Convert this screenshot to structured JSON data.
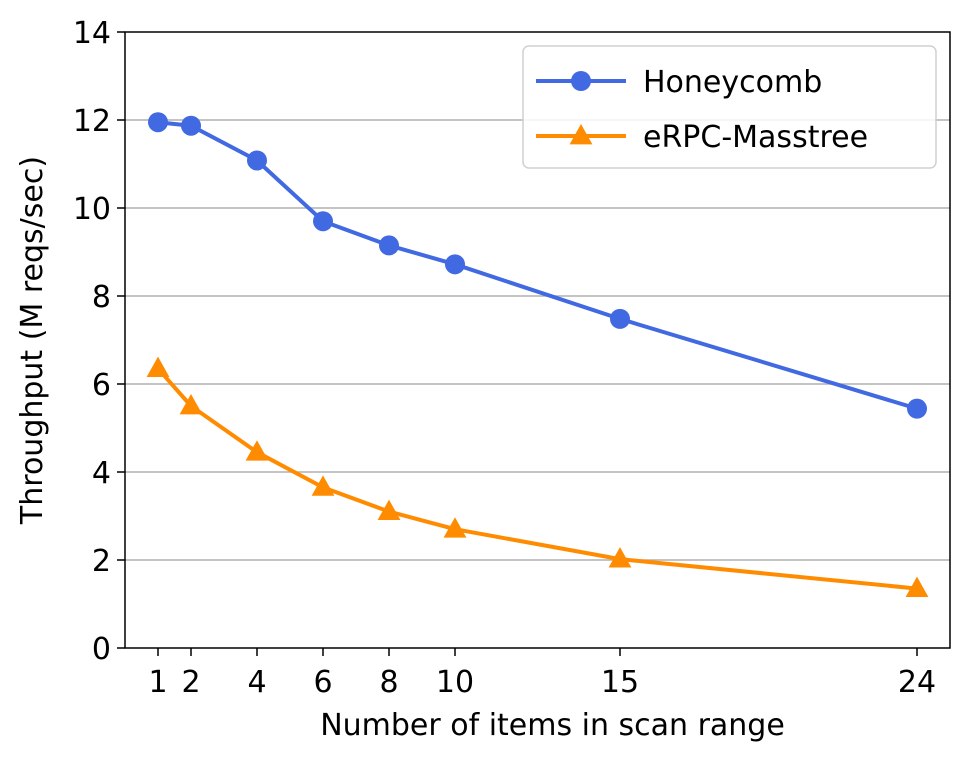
{
  "chart_data": {
    "type": "line",
    "xlabel": "Number of items in scan range",
    "ylabel": "Throughput (M reqs/sec)",
    "x": [
      1,
      2,
      4,
      6,
      8,
      10,
      15,
      24
    ],
    "xticks": [
      "1",
      "2",
      "4",
      "6",
      "8",
      "10",
      "15",
      "24"
    ],
    "yticks": [
      "0",
      "2",
      "4",
      "6",
      "8",
      "10",
      "12",
      "14"
    ],
    "ylim": [
      0,
      14
    ],
    "xlim": [
      0,
      25
    ],
    "grid": "horizontal",
    "legend_position": "top-right",
    "series": [
      {
        "name": "Honeycomb",
        "color": "#4169e1",
        "marker": "circle",
        "values": [
          11.95,
          11.87,
          11.08,
          9.7,
          9.15,
          8.72,
          7.48,
          5.44
        ]
      },
      {
        "name": "eRPC-Masstree",
        "color": "#ff8c00",
        "marker": "triangle",
        "values": [
          6.35,
          5.5,
          4.45,
          3.65,
          3.1,
          2.7,
          2.02,
          1.35
        ]
      }
    ]
  }
}
